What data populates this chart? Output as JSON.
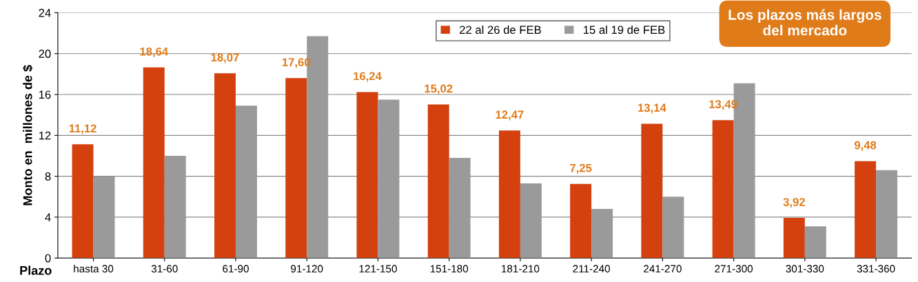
{
  "chart_data": {
    "type": "bar",
    "ylabel": "Monto en  millones de $",
    "xlabel": "Plazo",
    "categories": [
      "hasta 30",
      "31-60",
      "61-90",
      "91-120",
      "121-150",
      "151-180",
      "181-210",
      "211-240",
      "241-270",
      "271-300",
      "301-330",
      "331-360"
    ],
    "series": [
      {
        "name": "22 al 26 de FEB",
        "color": "#d4410f",
        "values": [
          11.12,
          18.64,
          18.07,
          17.6,
          16.24,
          15.02,
          12.47,
          7.25,
          13.14,
          13.49,
          3.92,
          9.48
        ],
        "value_labels": [
          "11,12",
          "18,64",
          "18,07",
          "17,60",
          "16,24",
          "15,02",
          "12,47",
          "7,25",
          "13,14",
          "13,49",
          "3,92",
          "9,48"
        ]
      },
      {
        "name": "15 al 19 de FEB",
        "color": "#9a9a9a",
        "values": [
          8.0,
          10.0,
          14.9,
          21.7,
          15.5,
          9.8,
          7.3,
          4.8,
          6.0,
          17.1,
          3.1,
          8.6
        ]
      }
    ],
    "ylim": [
      0,
      24
    ],
    "yticks": [
      0,
      4,
      8,
      12,
      16,
      20,
      24
    ],
    "grid": "y",
    "legend": "top",
    "annotations": [
      "Los plazos más largos\ndel mercado"
    ]
  }
}
